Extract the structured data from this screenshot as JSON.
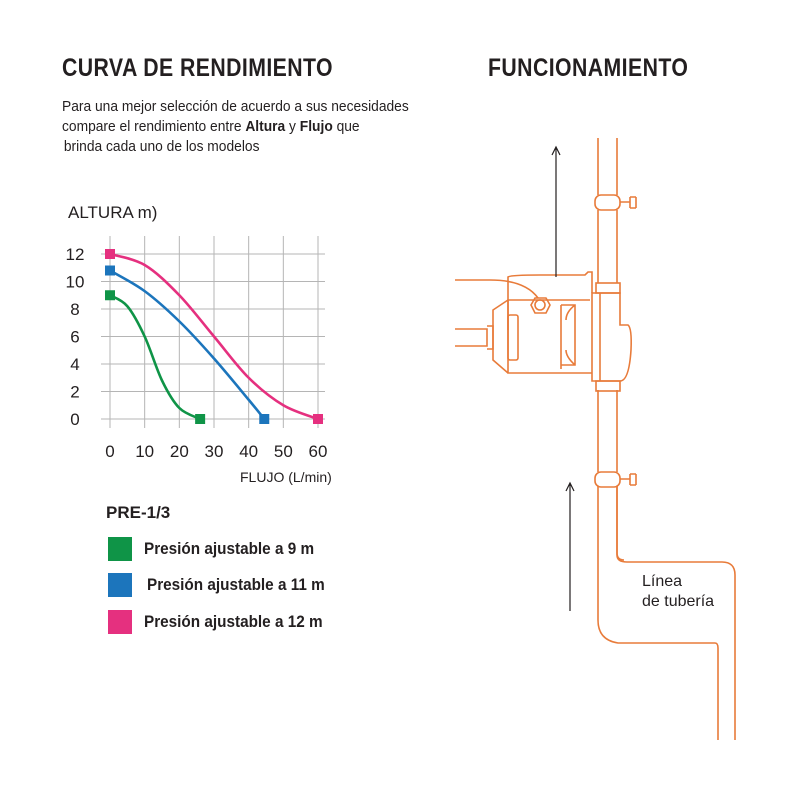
{
  "titles": {
    "left": "CURVA DE RENDIMIENTO",
    "right": "FUNCIONAMIENTO"
  },
  "intro": {
    "line1": "Para una mejor selección de acuerdo a sus necesidades",
    "line2_pre": "compare el rendimiento entre ",
    "line2_b1": "Altura",
    "line2_mid": " y ",
    "line2_b2": "Flujo",
    "line2_post": " que",
    "line3": "brinda cada uno de los modelos"
  },
  "legend": {
    "model": "PRE-1/3",
    "items": [
      {
        "label": "Presión ajustable a 9 m",
        "color": "#0f9447"
      },
      {
        "label": "Presión ajustable a 11 m",
        "color": "#1c75bc"
      },
      {
        "label": "Presión ajustable a 12 m",
        "color": "#e5307f"
      }
    ]
  },
  "diagram": {
    "pipe_label_1": "Línea",
    "pipe_label_2": "de tubería",
    "line_color": "#e87b3a"
  },
  "chart_data": {
    "type": "line",
    "ylabel": "ALTURA  m)",
    "xlabel": "FLUJO (L/min)",
    "xlim": [
      0,
      60
    ],
    "ylim": [
      0,
      12
    ],
    "xticks": [
      "0",
      "10",
      "20",
      "30",
      "40",
      "50",
      "60"
    ],
    "yticks": [
      "0",
      "2",
      "4",
      "6",
      "8",
      "10",
      "12"
    ],
    "grid": true,
    "series": [
      {
        "name": "Presión ajustable a 9 m",
        "color": "#0f9447",
        "x": [
          0,
          5,
          10,
          15,
          20,
          26
        ],
        "y": [
          9,
          8.2,
          6,
          2.8,
          0.8,
          0
        ]
      },
      {
        "name": "Presión ajustable a 11 m",
        "color": "#1c75bc",
        "x": [
          0,
          10,
          20,
          30,
          40,
          44.5
        ],
        "y": [
          10.8,
          9.3,
          7.1,
          4.4,
          1.4,
          0
        ]
      },
      {
        "name": "Presión ajustable a 12 m",
        "color": "#e5307f",
        "x": [
          0,
          10,
          20,
          30,
          40,
          50,
          60
        ],
        "y": [
          12,
          11.2,
          9,
          6,
          3,
          1,
          0
        ]
      }
    ]
  }
}
